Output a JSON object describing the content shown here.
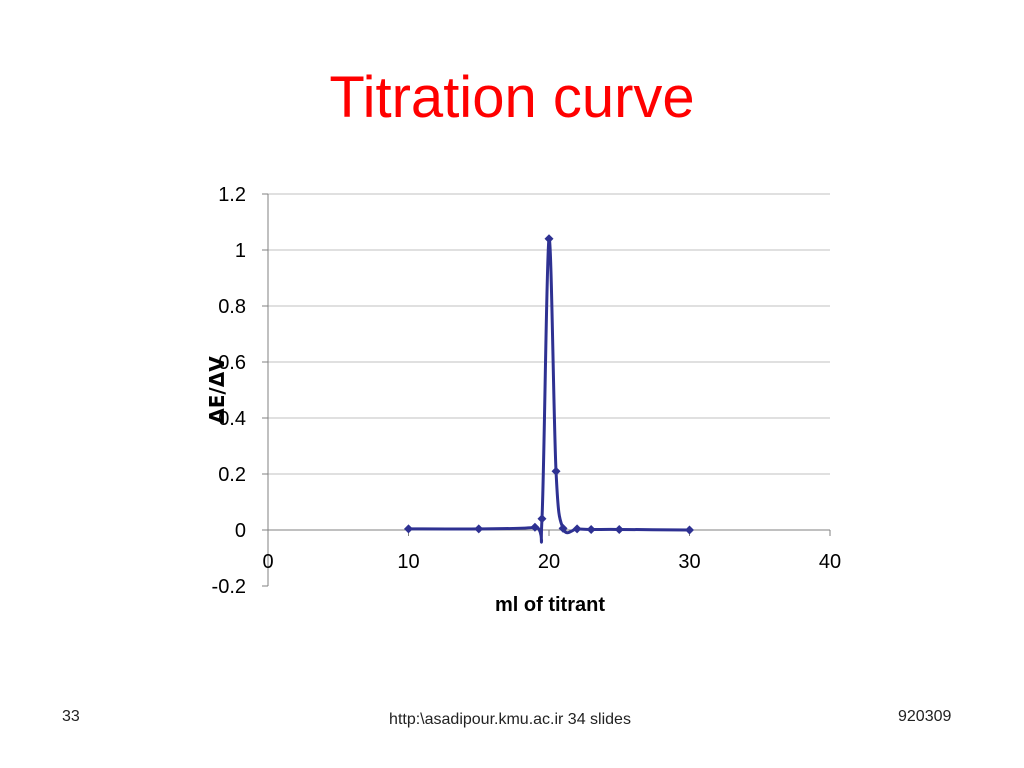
{
  "slide": {
    "title": "Titration curve"
  },
  "footer": {
    "left": "33",
    "center": "http:\\asadipour.kmu.ac.ir   34 slides",
    "right": "920309"
  },
  "colors": {
    "title": "#ff0000",
    "series": "#2e3192",
    "grid": "#c0c0c0",
    "axis": "#808080"
  },
  "chart_data": {
    "type": "scatter",
    "title": "",
    "xlabel": "ml of titrant",
    "ylabel": "ΔE/ΔV",
    "xlim": [
      0,
      40
    ],
    "ylim": [
      -0.2,
      1.2
    ],
    "x_ticks": [
      0,
      10,
      20,
      30,
      40
    ],
    "y_ticks": [
      -0.2,
      0,
      0.2,
      0.4,
      0.6,
      0.8,
      1,
      1.2
    ],
    "y_tick_labels": [
      "-0.2",
      "0",
      "0.2",
      "0.4",
      "0.6",
      "0.8",
      "1",
      "1.2"
    ],
    "grid": true,
    "legend": "none",
    "smooth_lines": true,
    "marker": "diamond",
    "series": [
      {
        "x": [
          10,
          15,
          19,
          19.5,
          20,
          20.5,
          21,
          22,
          23,
          25,
          30
        ],
        "y": [
          0.004,
          0.004,
          0.01,
          0.04,
          1.04,
          0.21,
          0.006,
          0.004,
          0.002,
          0.002,
          0.0
        ]
      }
    ]
  }
}
